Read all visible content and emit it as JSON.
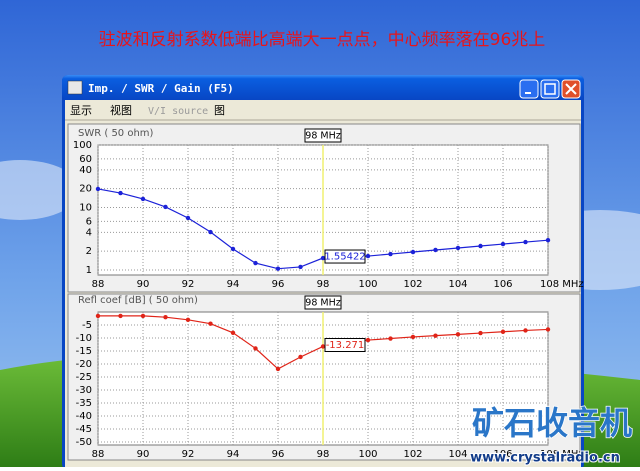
{
  "caption": "驻波和反射系数低端比高端大一点点，中心频率落在96兆上",
  "window": {
    "title": "Imp. / SWR / Gain   (F5)"
  },
  "menu": {
    "items": [
      "显示",
      "视图",
      "V/I source",
      "图"
    ]
  },
  "watermark": {
    "title": "矿石收音机",
    "url": "www.crystalradio.cn"
  },
  "chart_data": [
    {
      "type": "line",
      "y_label": "SWR ( 50 ohm)",
      "log_scale": true,
      "grid": true,
      "x": [
        88,
        89,
        90,
        91,
        92,
        93,
        94,
        95,
        96,
        97,
        98,
        99,
        100,
        101,
        102,
        103,
        104,
        105,
        106,
        107,
        108
      ],
      "series": [
        {
          "name": "SWR",
          "color": "#1c22d8",
          "values": [
            19.8,
            17,
            13.7,
            10.2,
            6.8,
            4.05,
            2.17,
            1.29,
            1.05,
            1.12,
            1.55422,
            1.6,
            1.67,
            1.8,
            1.94,
            2.09,
            2.25,
            2.42,
            2.6,
            2.8,
            3.0
          ]
        }
      ],
      "xlim": [
        88,
        108
      ],
      "xticks": [
        88,
        90,
        92,
        94,
        96,
        98,
        100,
        102,
        104,
        106,
        {
          "value": 108,
          "label": "108 MHz"
        }
      ],
      "ylim": [
        1,
        100
      ],
      "yticks": [
        1,
        2,
        4,
        6,
        10,
        20,
        40,
        60,
        100
      ],
      "marker": {
        "x": 98,
        "label": "98 MHz",
        "value_label": "1.55422"
      }
    },
    {
      "type": "line",
      "y_label": "Refl coef [dB] ( 50 ohm)",
      "log_scale": false,
      "grid": true,
      "x": [
        88,
        89,
        90,
        91,
        92,
        93,
        94,
        95,
        96,
        97,
        98,
        99,
        100,
        101,
        102,
        103,
        104,
        105,
        106,
        107,
        108
      ],
      "series": [
        {
          "name": "Refl coef",
          "color": "#e02418",
          "values": [
            -1.5,
            -1.5,
            -1.5,
            -2,
            -3,
            -4.5,
            -8,
            -14,
            -21.9,
            -17.3,
            -13.271,
            -11.5,
            -10.8,
            -10.2,
            -9.6,
            -9.1,
            -8.6,
            -8.1,
            -7.6,
            -7.1,
            -6.7
          ]
        }
      ],
      "xlim": [
        88,
        108
      ],
      "xticks": [
        88,
        90,
        92,
        94,
        96,
        98,
        100,
        102,
        104,
        106,
        {
          "value": 108,
          "label": "108 MHz"
        }
      ],
      "ylim": [
        -50,
        0
      ],
      "yticks": [
        -5,
        -10,
        -15,
        -20,
        -25,
        -30,
        -35,
        -40,
        -45,
        -50
      ],
      "marker": {
        "x": 98,
        "label": "98 MHz",
        "value_label": "-13.271"
      }
    }
  ]
}
